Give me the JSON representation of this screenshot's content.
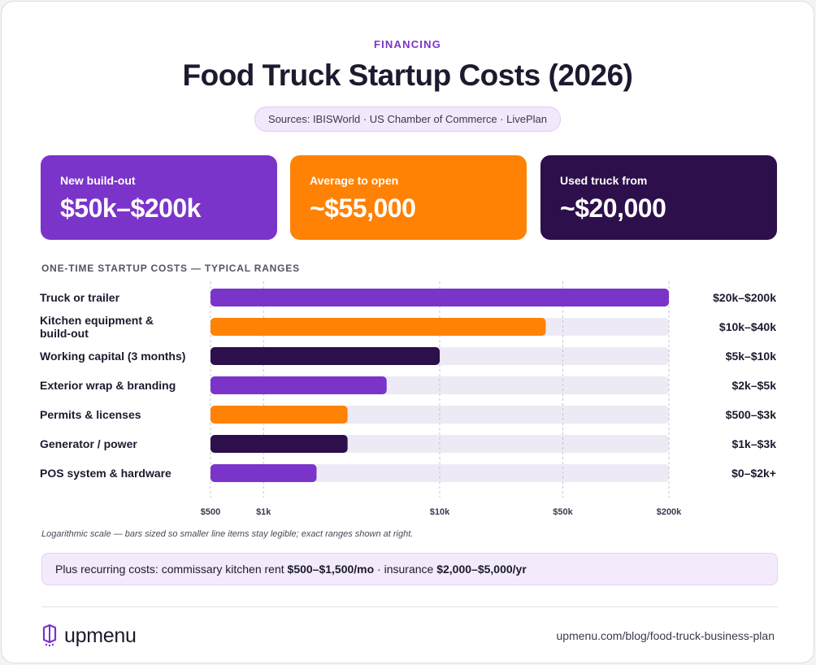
{
  "eyebrow": "FINANCING",
  "title": "Food Truck Startup Costs (2026)",
  "sources": "Sources: IBISWorld · US Chamber of Commerce · LivePlan",
  "stats": [
    {
      "label": "New build-out",
      "value": "$50k–$200k",
      "color": "#7b34c9"
    },
    {
      "label": "Average to open",
      "value": "~$55,000",
      "color": "#ff8205"
    },
    {
      "label": "Used truck from",
      "value": "~$20,000",
      "color": "#2c0f4b"
    }
  ],
  "section_label": "ONE-TIME STARTUP COSTS — TYPICAL RANGES",
  "chart_data": {
    "type": "bar",
    "orientation": "horizontal",
    "scale": "log",
    "xlim": [
      500,
      200000
    ],
    "xticks": [
      500,
      1000,
      10000,
      50000,
      200000
    ],
    "xtick_labels": [
      "$500",
      "$1k",
      "$10k",
      "$50k",
      "$200k"
    ],
    "grid": true,
    "categories": [
      {
        "label": "Truck or trailer",
        "value": 200000,
        "range_label": "$20k–$200k",
        "color": "#7b34c9"
      },
      {
        "label": "Kitchen equipment & build-out",
        "value": 40000,
        "range_label": "$10k–$40k",
        "color": "#ff8205"
      },
      {
        "label": "Working capital (3 months)",
        "value": 10000,
        "range_label": "$5k–$10k",
        "color": "#2c0f4b"
      },
      {
        "label": "Exterior wrap & branding",
        "value": 5000,
        "range_label": "$2k–$5k",
        "color": "#7b34c9"
      },
      {
        "label": "Permits & licenses",
        "value": 3000,
        "range_label": "$500–$3k",
        "color": "#ff8205"
      },
      {
        "label": "Generator / power",
        "value": 3000,
        "range_label": "$1k–$3k",
        "color": "#2c0f4b"
      },
      {
        "label": "POS system & hardware",
        "value": 2000,
        "range_label": "$0–$2k+",
        "color": "#7b34c9"
      }
    ],
    "track_color": "#edeaf5"
  },
  "note": "Logarithmic scale — bars sized so smaller line items stay legible; exact ranges shown at right.",
  "recurring": {
    "prefix": "Plus recurring costs: commissary kitchen rent ",
    "rent": "$500–$1,500/mo",
    "sep": " · insurance ",
    "insurance": "$2,000–$5,000/yr"
  },
  "footer": {
    "logo_text": "upmenu",
    "logo_icon": "upmenu-logo-icon",
    "url": "upmenu.com/blog/food-truck-business-plan"
  }
}
